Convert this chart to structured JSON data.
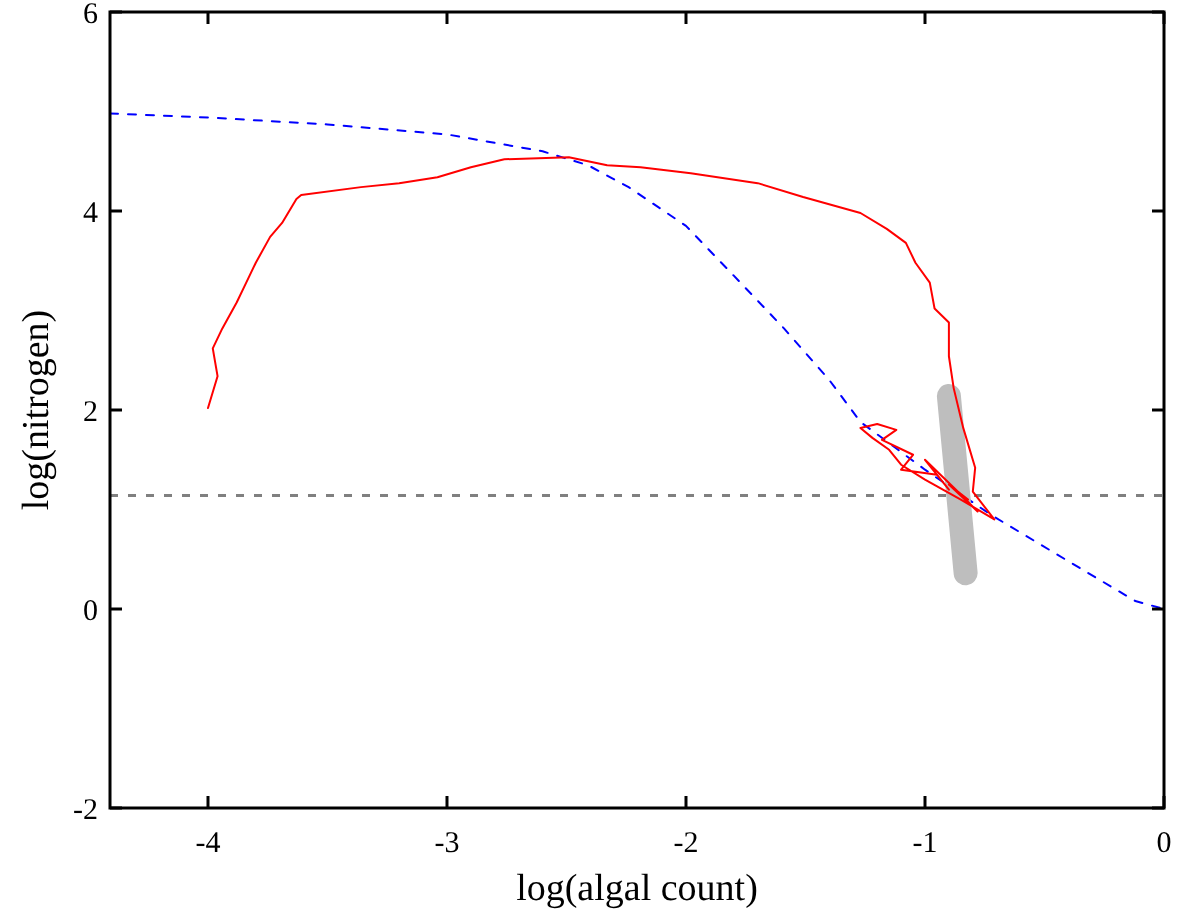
{
  "chart_data": {
    "type": "line",
    "xlabel": "log(algal count)",
    "ylabel": "log(nitrogen)",
    "xlim": [
      -4.41,
      0
    ],
    "ylim": [
      -2,
      6
    ],
    "xticks": [
      -4,
      -3,
      -2,
      -1,
      0
    ],
    "yticks": [
      -2,
      0,
      2,
      4,
      6
    ],
    "grid": false,
    "series": [
      {
        "color": "#0000ff",
        "line_style": "dashed",
        "x": [
          -4.41,
          -4.0,
          -3.5,
          -3.0,
          -2.6,
          -2.41,
          -2.24,
          -2.0,
          -1.8,
          -1.59,
          -1.4,
          -1.27,
          -1.0,
          -0.72,
          -0.4,
          -0.12,
          0
        ],
        "values": [
          4.98,
          4.94,
          4.87,
          4.77,
          4.6,
          4.46,
          4.24,
          3.85,
          3.35,
          2.82,
          2.3,
          1.88,
          1.4,
          0.94,
          0.48,
          0.08,
          0.0
        ]
      },
      {
        "color": "#bebebe",
        "line_style": "solid",
        "x": [
          -0.9,
          -0.83
        ],
        "values": [
          2.14,
          0.36
        ]
      },
      {
        "color": "#ff0000",
        "line_style": "solid",
        "x": [
          -4.0,
          -3.96,
          -3.98,
          -3.94,
          -3.88,
          -3.84,
          -3.8,
          -3.74,
          -3.69,
          -3.63,
          -3.61,
          -3.36,
          -3.2,
          -3.04,
          -2.9,
          -2.76,
          -2.49,
          -2.33,
          -2.19,
          -1.98,
          -1.7,
          -1.51,
          -1.27,
          -1.16,
          -1.08,
          -1.04,
          -0.98,
          -0.96,
          -0.9,
          -0.9,
          -0.88,
          -0.84,
          -0.79,
          -0.8,
          -0.71,
          -0.85,
          -1.0,
          -1.1,
          -1.15,
          -1.22,
          -1.27,
          -1.2,
          -1.12,
          -1.18,
          -1.05,
          -1.1,
          -0.95,
          -0.9,
          -1.0,
          -0.85,
          -0.78,
          -0.9,
          -0.82
        ],
        "values": [
          2.02,
          2.34,
          2.62,
          2.82,
          3.08,
          3.28,
          3.48,
          3.74,
          3.88,
          4.12,
          4.16,
          4.24,
          4.28,
          4.34,
          4.44,
          4.52,
          4.54,
          4.46,
          4.44,
          4.38,
          4.28,
          4.14,
          3.98,
          3.82,
          3.68,
          3.48,
          3.28,
          3.02,
          2.88,
          2.54,
          2.22,
          1.82,
          1.42,
          1.18,
          0.9,
          1.1,
          1.3,
          1.45,
          1.6,
          1.72,
          1.82,
          1.86,
          1.8,
          1.7,
          1.55,
          1.4,
          1.35,
          1.2,
          1.5,
          1.15,
          0.98,
          1.25,
          1.1
        ]
      }
    ],
    "ref_lines": [
      {
        "axis": "y",
        "value": 1.14,
        "color": "#808080",
        "line_style": "dashed"
      }
    ]
  }
}
